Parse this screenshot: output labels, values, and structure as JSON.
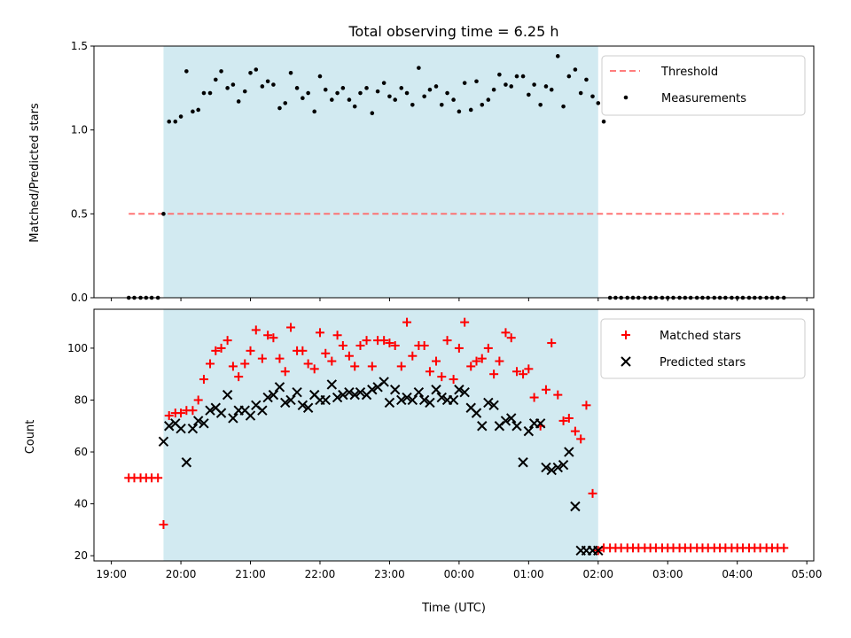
{
  "chart_data": [
    {
      "type": "scatter",
      "title": "Total observing time = 6.25 h",
      "xlabel": "",
      "ylabel": "Matched/Predicted stars",
      "xlim": [
        -0.25,
        10.1
      ],
      "ylim": [
        0,
        1.5
      ],
      "yticks": [
        "0.0",
        "0.5",
        "1.0",
        "1.5"
      ],
      "shaded_x_range": [
        0.75,
        7.0
      ],
      "shaded_color": "#add8e6",
      "legend_position": "upper right",
      "series": [
        {
          "name": "Threshold",
          "kind": "dashed-line",
          "color": "#ff6b6b",
          "x": [
            0.25,
            9.67
          ],
          "y": [
            0.5,
            0.5
          ]
        },
        {
          "name": "Measurements",
          "kind": "dot",
          "color": "#000000",
          "x": [
            0.25,
            0.33,
            0.42,
            0.5,
            0.58,
            0.67,
            0.75,
            0.83,
            0.92,
            1.0,
            1.08,
            1.17,
            1.25,
            1.33,
            1.42,
            1.5,
            1.58,
            1.67,
            1.75,
            1.83,
            1.92,
            2.0,
            2.08,
            2.17,
            2.25,
            2.33,
            2.42,
            2.5,
            2.58,
            2.67,
            2.75,
            2.83,
            2.92,
            3.0,
            3.08,
            3.17,
            3.25,
            3.33,
            3.42,
            3.5,
            3.58,
            3.67,
            3.75,
            3.83,
            3.92,
            4.0,
            4.08,
            4.17,
            4.25,
            4.33,
            4.42,
            4.5,
            4.58,
            4.67,
            4.75,
            4.83,
            4.92,
            5.0,
            5.08,
            5.17,
            5.25,
            5.33,
            5.42,
            5.5,
            5.58,
            5.67,
            5.75,
            5.83,
            5.92,
            6.0,
            6.08,
            6.17,
            6.25,
            6.33,
            6.42,
            6.5,
            6.58,
            6.67,
            6.75,
            6.83,
            6.92,
            7.0,
            7.08,
            7.17,
            7.25,
            7.33,
            7.42,
            7.5,
            7.58,
            7.67,
            7.75,
            7.83,
            7.92,
            8.0,
            8.08,
            8.17,
            8.25,
            8.33,
            8.42,
            8.5,
            8.58,
            8.67,
            8.75,
            8.83,
            8.92,
            9.0,
            9.08,
            9.17,
            9.25,
            9.33,
            9.42,
            9.5,
            9.58,
            9.67
          ],
          "y": [
            0,
            0,
            0,
            0,
            0,
            0,
            0.5,
            1.05,
            1.05,
            1.08,
            1.35,
            1.11,
            1.12,
            1.22,
            1.22,
            1.3,
            1.35,
            1.25,
            1.27,
            1.17,
            1.23,
            1.34,
            1.36,
            1.26,
            1.29,
            1.27,
            1.13,
            1.16,
            1.34,
            1.25,
            1.19,
            1.22,
            1.11,
            1.32,
            1.24,
            1.18,
            1.22,
            1.25,
            1.18,
            1.14,
            1.22,
            1.25,
            1.1,
            1.23,
            1.28,
            1.2,
            1.18,
            1.25,
            1.22,
            1.15,
            1.37,
            1.2,
            1.24,
            1.26,
            1.15,
            1.22,
            1.18,
            1.11,
            1.28,
            1.12,
            1.29,
            1.15,
            1.18,
            1.24,
            1.33,
            1.27,
            1.26,
            1.32,
            1.32,
            1.21,
            1.27,
            1.15,
            1.26,
            1.24,
            1.44,
            1.14,
            1.32,
            1.36,
            1.22,
            1.3,
            1.2,
            1.16,
            1.05,
            0,
            0,
            0,
            0,
            0,
            0,
            0,
            0,
            0,
            0,
            0,
            0,
            0,
            0,
            0,
            0,
            0,
            0,
            0,
            0,
            0,
            0,
            0,
            0,
            0,
            0,
            0,
            0,
            0,
            0,
            0
          ]
        }
      ]
    },
    {
      "type": "scatter",
      "title": "",
      "xlabel": "Time (UTC)",
      "ylabel": "Count",
      "xlim": [
        -0.25,
        10.1
      ],
      "ylim": [
        18,
        115
      ],
      "yticks": [
        "20",
        "40",
        "60",
        "80",
        "100"
      ],
      "xticks": [
        "19:00",
        "20:00",
        "21:00",
        "22:00",
        "23:00",
        "00:00",
        "01:00",
        "02:00",
        "03:00",
        "04:00",
        "05:00"
      ],
      "shaded_x_range": [
        0.75,
        7.0
      ],
      "shaded_color": "#add8e6",
      "legend_position": "upper right",
      "series": [
        {
          "name": "Matched stars",
          "kind": "plus",
          "color": "#ff0000",
          "x": [
            0.25,
            0.33,
            0.42,
            0.5,
            0.58,
            0.67,
            0.75,
            0.83,
            0.92,
            1.0,
            1.08,
            1.17,
            1.25,
            1.33,
            1.42,
            1.5,
            1.58,
            1.67,
            1.75,
            1.83,
            1.92,
            2.0,
            2.08,
            2.17,
            2.25,
            2.33,
            2.42,
            2.5,
            2.58,
            2.67,
            2.75,
            2.83,
            2.92,
            3.0,
            3.08,
            3.17,
            3.25,
            3.33,
            3.42,
            3.5,
            3.58,
            3.67,
            3.75,
            3.83,
            3.92,
            4.0,
            4.08,
            4.17,
            4.25,
            4.33,
            4.42,
            4.5,
            4.58,
            4.67,
            4.75,
            4.83,
            4.92,
            5.0,
            5.08,
            5.17,
            5.25,
            5.33,
            5.42,
            5.5,
            5.58,
            5.67,
            5.75,
            5.83,
            5.92,
            6.0,
            6.08,
            6.17,
            6.25,
            6.33,
            6.42,
            6.5,
            6.58,
            6.67,
            6.75,
            6.83,
            6.92,
            7.0,
            7.08,
            7.17,
            7.25,
            7.33,
            7.42,
            7.5,
            7.58,
            7.67,
            7.75,
            7.83,
            7.92,
            8.0,
            8.08,
            8.17,
            8.25,
            8.33,
            8.42,
            8.5,
            8.58,
            8.67,
            8.75,
            8.83,
            8.92,
            9.0,
            9.08,
            9.17,
            9.25,
            9.33,
            9.42,
            9.5,
            9.58,
            9.67
          ],
          "y": [
            50,
            50,
            50,
            50,
            50,
            50,
            32,
            74,
            75,
            75,
            76,
            76,
            80,
            88,
            94,
            99,
            100,
            103,
            93,
            89,
            94,
            99,
            107,
            96,
            105,
            104,
            96,
            91,
            108,
            99,
            99,
            94,
            92,
            106,
            98,
            95,
            105,
            101,
            97,
            93,
            101,
            103,
            93,
            103,
            103,
            102,
            101,
            93,
            110,
            97,
            101,
            101,
            91,
            95,
            89,
            103,
            88,
            100,
            110,
            93,
            95,
            96,
            100,
            90,
            95,
            106,
            104,
            91,
            90,
            92,
            81,
            70,
            84,
            102,
            82,
            72,
            73,
            68,
            65,
            78,
            44,
            22,
            23,
            23,
            23,
            23,
            23,
            23,
            23,
            23,
            23,
            23,
            23,
            23,
            23,
            23,
            23,
            23,
            23,
            23,
            23,
            23,
            23,
            23,
            23,
            23,
            23,
            23,
            23,
            23,
            23,
            23,
            23,
            23
          ]
        },
        {
          "name": "Predicted stars",
          "kind": "cross",
          "color": "#000000",
          "x": [
            0.75,
            0.83,
            0.92,
            1.0,
            1.08,
            1.17,
            1.25,
            1.33,
            1.42,
            1.5,
            1.58,
            1.67,
            1.75,
            1.83,
            1.92,
            2.0,
            2.08,
            2.17,
            2.25,
            2.33,
            2.42,
            2.5,
            2.58,
            2.67,
            2.75,
            2.83,
            2.92,
            3.0,
            3.08,
            3.17,
            3.25,
            3.33,
            3.42,
            3.5,
            3.58,
            3.67,
            3.75,
            3.83,
            3.92,
            4.0,
            4.08,
            4.17,
            4.25,
            4.33,
            4.42,
            4.5,
            4.58,
            4.67,
            4.75,
            4.83,
            4.92,
            5.0,
            5.08,
            5.17,
            5.25,
            5.33,
            5.42,
            5.5,
            5.58,
            5.67,
            5.75,
            5.83,
            5.92,
            6.0,
            6.08,
            6.17,
            6.25,
            6.33,
            6.42,
            6.5,
            6.58,
            6.67,
            6.75,
            6.83,
            6.92,
            7.0
          ],
          "y": [
            64,
            70,
            71,
            69,
            56,
            69,
            72,
            71,
            76,
            77,
            75,
            82,
            73,
            76,
            76,
            74,
            78,
            76,
            81,
            82,
            85,
            79,
            80,
            83,
            78,
            77,
            82,
            80,
            80,
            86,
            81,
            82,
            83,
            82,
            83,
            82,
            84,
            85,
            87,
            79,
            84,
            80,
            81,
            80,
            83,
            80,
            79,
            84,
            81,
            80,
            80,
            84,
            83,
            77,
            75,
            70,
            79,
            78,
            70,
            72,
            73,
            70,
            56,
            68,
            71,
            71,
            54,
            53,
            54,
            55,
            60,
            39,
            22,
            22,
            22,
            22
          ]
        }
      ]
    }
  ]
}
